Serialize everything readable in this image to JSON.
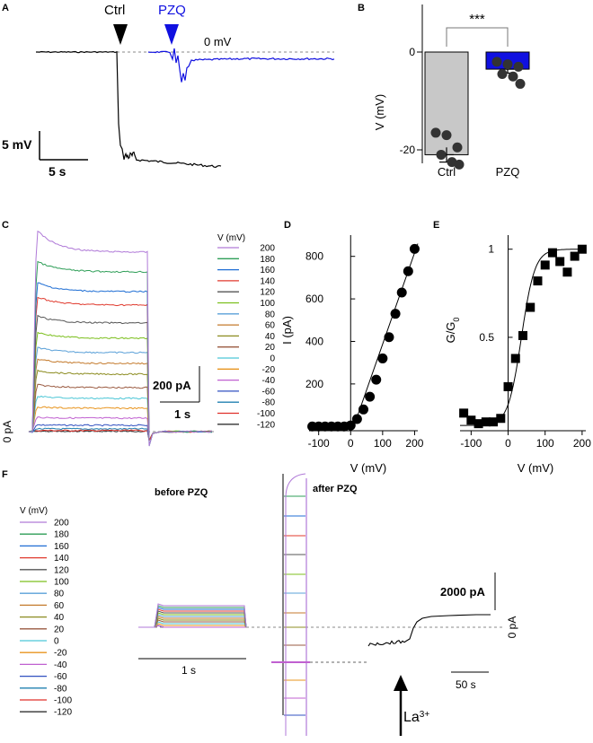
{
  "chart_data": [
    {
      "panel": "A",
      "type": "line",
      "title": "",
      "annotations": [
        "Ctrl",
        "PZQ",
        "0 mV"
      ],
      "scalebar": {
        "y": "5 mV",
        "x": "5 s"
      },
      "series": [
        {
          "name": "Ctrl",
          "color": "#000000",
          "resting_mV": 0,
          "plateau_mV": -20
        },
        {
          "name": "PZQ",
          "color": "#1010e0",
          "resting_mV": 0,
          "min_mV": -4
        }
      ]
    },
    {
      "panel": "B",
      "type": "bar",
      "categories": [
        "Ctrl",
        "PZQ"
      ],
      "values": [
        -21,
        -3.5
      ],
      "sem": [
        1.5,
        0.8
      ],
      "colors": [
        "#c8c8c8",
        "#1010e0"
      ],
      "points": [
        [
          -16.5,
          -17,
          -19.5,
          -21,
          -22.5,
          -23
        ],
        [
          -2,
          -2.5,
          -3,
          -4.5,
          -5,
          -6.5
        ]
      ],
      "ylabel": "V (mV)",
      "xlabel": "",
      "ylim": [
        -25,
        10
      ],
      "yticks": [
        "0",
        "-20"
      ],
      "significance": "***"
    },
    {
      "panel": "C",
      "type": "line",
      "legend_title": "V (mV)",
      "voltages": [
        200,
        180,
        160,
        140,
        120,
        100,
        80,
        60,
        40,
        20,
        0,
        -20,
        -40,
        -60,
        -80,
        -100,
        -120
      ],
      "legend_labels": [
        "200",
        "180",
        "160",
        "140",
        "120",
        "100",
        "80",
        "60",
        "40",
        "20",
        "0",
        "-20",
        "-40",
        "-60",
        "-80",
        "-100",
        "-120"
      ],
      "colors": [
        "#b07ad8",
        "#2e9e57",
        "#1f6ed4",
        "#e03a2e",
        "#555555",
        "#7cbf1e",
        "#5aa0d8",
        "#c47a2c",
        "#8c8c20",
        "#9a5a40",
        "#4cc6d6",
        "#e8941e",
        "#c060d0",
        "#3050c0",
        "#2080b0",
        "#e0302a",
        "#333333"
      ],
      "scalebar": {
        "y": "200 pA",
        "x": "1 s"
      },
      "zero_label": "0 pA"
    },
    {
      "panel": "D",
      "type": "scatter",
      "x": [
        -120,
        -100,
        -80,
        -60,
        -40,
        -20,
        0,
        20,
        40,
        60,
        80,
        100,
        120,
        140,
        160,
        180,
        200
      ],
      "y": [
        0,
        0,
        0,
        0,
        0,
        0,
        5,
        35,
        80,
        140,
        220,
        320,
        420,
        530,
        630,
        730,
        835
      ],
      "xlabel": "V (mV)",
      "ylabel": "I (pA)",
      "xlim": [
        -130,
        210
      ],
      "ylim": [
        -20,
        900
      ],
      "xticks": [
        "-100",
        "0",
        "100",
        "200"
      ],
      "yticks": [
        "0",
        "200",
        "400",
        "600",
        "800"
      ]
    },
    {
      "panel": "E",
      "type": "scatter",
      "x": [
        -120,
        -100,
        -80,
        -60,
        -40,
        -20,
        0,
        20,
        40,
        60,
        80,
        100,
        120,
        140,
        160,
        180,
        200
      ],
      "y": [
        0.07,
        0.03,
        0.01,
        0.02,
        0.02,
        0.04,
        0.22,
        0.38,
        0.51,
        0.67,
        0.82,
        0.91,
        0.98,
        0.93,
        0.87,
        0.96,
        1.0
      ],
      "xlabel": "V (mV)",
      "ylabel": "G/G",
      "ylabel_sub": "0",
      "xlim": [
        -130,
        210
      ],
      "ylim": [
        -0.03,
        1.08
      ],
      "xticks": [
        "-100",
        "0",
        "100",
        "200"
      ],
      "yticks": [
        "0.5",
        "1"
      ]
    },
    {
      "panel": "F",
      "type": "line",
      "labels": {
        "before": "before PZQ",
        "after": "after PZQ"
      },
      "legend_title": "V (mV)",
      "legend_labels": [
        "200",
        "180",
        "160",
        "140",
        "120",
        "100",
        "80",
        "60",
        "40",
        "20",
        "0",
        "-20",
        "-40",
        "-60",
        "-80",
        "-100",
        "-120"
      ],
      "scalebar": {
        "y": "2000 pA",
        "x_left": "1 s",
        "x_right": "50 s"
      },
      "zero_label": "0 pA",
      "arrow_label": "La",
      "arrow_sup": "3+"
    }
  ],
  "panels": {
    "A": "A",
    "B": "B",
    "C": "C",
    "D": "D",
    "E": "E",
    "F": "F"
  }
}
